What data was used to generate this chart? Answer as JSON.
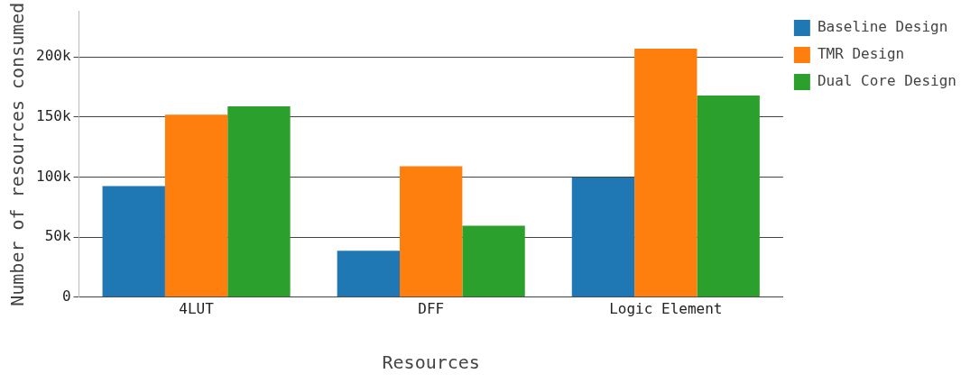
{
  "chart_data": {
    "type": "bar",
    "xlabel": "Resources",
    "ylabel": "Number of resources consumed",
    "categories": [
      "4LUT",
      "DFF",
      "Logic Element"
    ],
    "series": [
      {
        "name": "Baseline Design",
        "color": "#1f77b4",
        "values": [
          92500,
          38700,
          99600
        ]
      },
      {
        "name": "TMR Design",
        "color": "#ff7f0e",
        "values": [
          152000,
          109000,
          207000
        ]
      },
      {
        "name": "Dual Core Design",
        "color": "#2ca02c",
        "values": [
          159000,
          59500,
          168000
        ]
      }
    ],
    "ylim": [
      0,
      238000
    ],
    "yticks": [
      0,
      {
        "value": 50000,
        "label": "50k"
      },
      {
        "value": 100000,
        "label": "100k"
      },
      {
        "value": 150000,
        "label": "150k"
      },
      {
        "value": 200000,
        "label": "200k"
      }
    ],
    "grid": "y",
    "legend": "top right"
  }
}
